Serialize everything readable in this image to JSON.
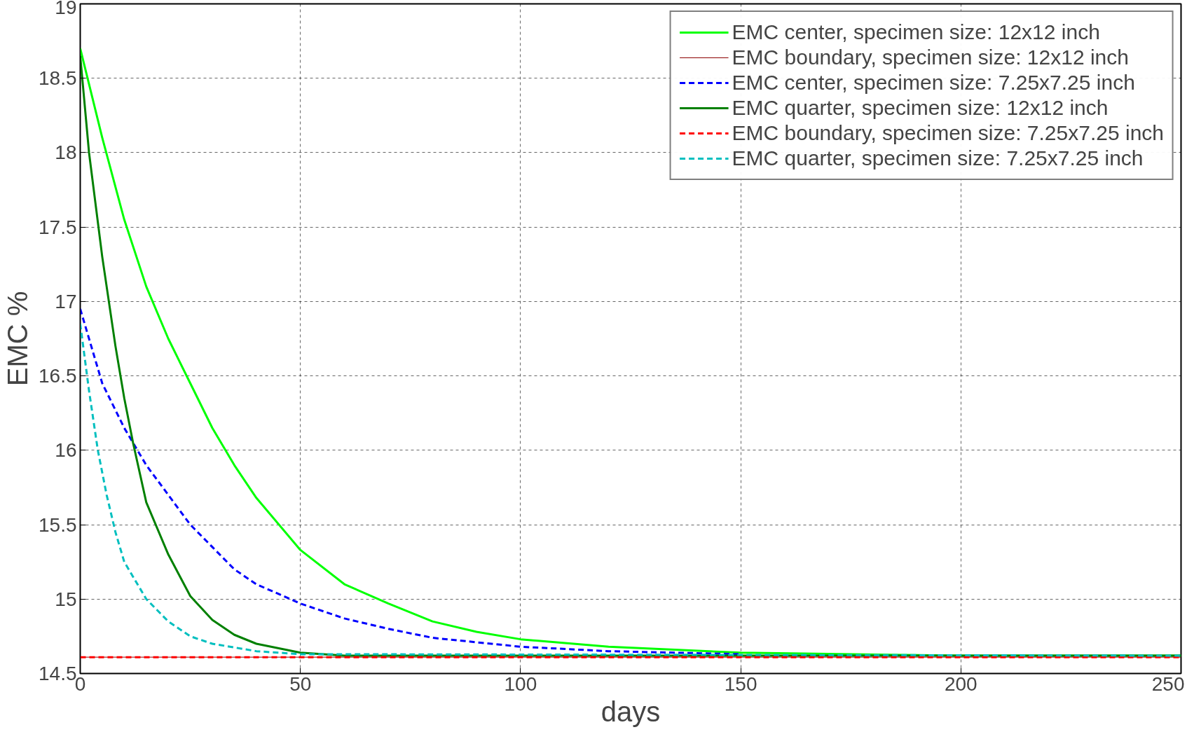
{
  "chart_data": {
    "type": "line",
    "xlabel": "days",
    "ylabel": "EMC %",
    "xlim": [
      0,
      250
    ],
    "ylim": [
      14.5,
      19
    ],
    "xticks": [
      0,
      50,
      100,
      150,
      200,
      250
    ],
    "yticks": [
      14.5,
      15,
      15.5,
      16,
      16.5,
      17,
      17.5,
      18,
      18.5,
      19
    ],
    "grid": true,
    "legend": "top right",
    "series": [
      {
        "name": "EMC center, specimen size: 12x12 inch",
        "color": "#00ff00",
        "line_style": "solid",
        "x": [
          0,
          5,
          10,
          15,
          20,
          25,
          30,
          35,
          40,
          50,
          60,
          70,
          80,
          90,
          100,
          120,
          150,
          200,
          250
        ],
        "values": [
          18.7,
          18.1,
          17.55,
          17.1,
          16.75,
          16.45,
          16.15,
          15.9,
          15.68,
          15.33,
          15.1,
          14.97,
          14.85,
          14.78,
          14.73,
          14.68,
          14.64,
          14.62,
          14.62
        ]
      },
      {
        "name": "EMC boundary, specimen size: 12x12 inch",
        "color": "#8b0000",
        "line_style": "solid",
        "x": [
          0,
          250
        ],
        "values": [
          14.61,
          14.61
        ]
      },
      {
        "name": "EMC center, specimen size: 7.25x7.25 inch",
        "color": "#0000ff",
        "line_style": "dashed",
        "x": [
          0,
          3,
          5,
          10,
          15,
          20,
          25,
          30,
          35,
          40,
          50,
          60,
          70,
          80,
          100,
          120,
          150
        ],
        "values": [
          16.95,
          16.65,
          16.45,
          16.15,
          15.9,
          15.7,
          15.5,
          15.35,
          15.2,
          15.1,
          14.97,
          14.87,
          14.8,
          14.74,
          14.68,
          14.65,
          14.63
        ]
      },
      {
        "name": "EMC quarter, specimen size: 12x12 inch",
        "color": "#008000",
        "line_style": "solid",
        "x": [
          0,
          2,
          5,
          8,
          10,
          12,
          15,
          20,
          25,
          30,
          35,
          40,
          50,
          60,
          250
        ],
        "values": [
          18.65,
          18.0,
          17.3,
          16.7,
          16.35,
          16.05,
          15.65,
          15.3,
          15.02,
          14.86,
          14.76,
          14.7,
          14.64,
          14.62,
          14.62
        ]
      },
      {
        "name": "EMC boundary, specimen size: 7.25x7.25 inch",
        "color": "#ff0000",
        "line_style": "dashed",
        "x": [
          0,
          250
        ],
        "values": [
          14.61,
          14.61
        ]
      },
      {
        "name": "EMC quarter, specimen size: 7.25x7.25 inch",
        "color": "#00bfbf",
        "line_style": "dashed",
        "x": [
          0,
          2,
          4,
          6,
          8,
          10,
          15,
          20,
          25,
          30,
          40,
          50,
          250
        ],
        "values": [
          16.85,
          16.4,
          16.0,
          15.7,
          15.45,
          15.25,
          15.0,
          14.85,
          14.75,
          14.7,
          14.65,
          14.63,
          14.62
        ]
      }
    ]
  }
}
